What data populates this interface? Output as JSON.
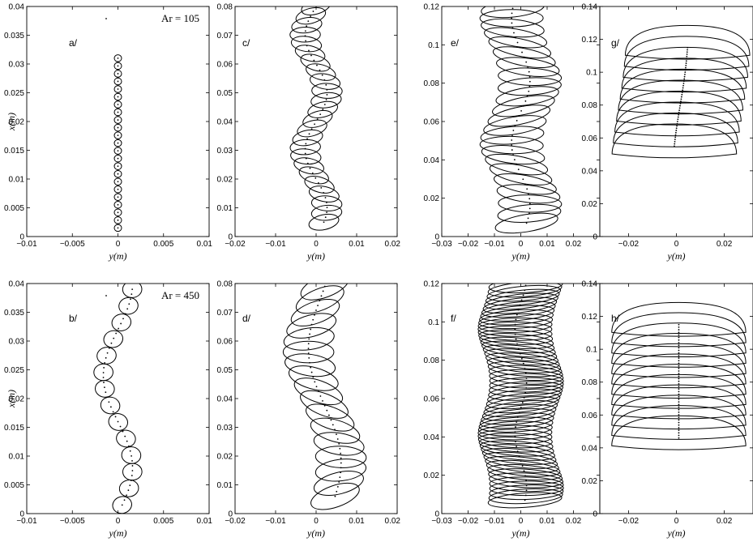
{
  "chart_data": [
    {
      "id": "a",
      "type": "scatter",
      "tag": "a/",
      "xlabel": "y(m)",
      "ylabel": "x(m)",
      "annotation": "Ar = 105",
      "xlim": [
        -0.01,
        0.01
      ],
      "ylim": [
        0,
        0.04
      ],
      "xticks": [
        "−0.01",
        "−0.005",
        "0",
        "0.005",
        "0.01"
      ],
      "yticks": [
        "0",
        "0.005",
        "0.01",
        "0.015",
        "0.02",
        "0.025",
        "0.03",
        "0.035",
        "0.04"
      ],
      "trajectory": {
        "y_start": 0.0,
        "y_end": 0.0,
        "amplitude": 0.0,
        "wavelength": 0.02,
        "x_start": 0.0015,
        "x_end": 0.031
      },
      "shapes": {
        "count": 23,
        "width": 0.0008,
        "height": 0.0012,
        "tilt_deg": 0,
        "flat_cap": false
      }
    },
    {
      "id": "c",
      "type": "scatter",
      "tag": "c/",
      "xlabel": "y(m)",
      "ylabel": "",
      "xlim": [
        -0.02,
        0.02
      ],
      "ylim": [
        0,
        0.08
      ],
      "xticks": [
        "−0.02",
        "−0.01",
        "0",
        "0.01",
        "0.02"
      ],
      "yticks": [
        "0",
        "0.01",
        "0.02",
        "0.03",
        "0.04",
        "0.05",
        "0.06",
        "0.07",
        "0.08"
      ],
      "trajectory": {
        "y_start": 0.0,
        "y_end": 0.0,
        "amplitude": 0.0027,
        "wavelength": 0.04,
        "x_start": 0.005,
        "x_end": 0.08
      },
      "shapes": {
        "count": 24,
        "width": 0.0075,
        "height": 0.0052,
        "tilt_deg": 18,
        "flat_cap": false
      }
    },
    {
      "id": "e",
      "type": "scatter",
      "tag": "e/",
      "xlabel": "y(m)",
      "ylabel": "",
      "xlim": [
        -0.03,
        0.03
      ],
      "ylim": [
        0,
        0.12
      ],
      "xticks": [
        "−0.03",
        "−0.02",
        "−0.01",
        "0",
        "0.01",
        "0.02"
      ],
      "yticks": [
        "0",
        "0.02",
        "0.04",
        "0.06",
        "0.08",
        "0.1",
        "0.12"
      ],
      "trajectory": {
        "y_start": 0.0,
        "y_end": 0.0,
        "amplitude": 0.0035,
        "wavelength": 0.065,
        "x_start": 0.007,
        "x_end": 0.119
      },
      "shapes": {
        "count": 23,
        "width": 0.024,
        "height": 0.009,
        "tilt_deg": 12,
        "flat_cap": false
      }
    },
    {
      "id": "g",
      "type": "scatter",
      "tag": "g/",
      "xlabel": "y(m)",
      "ylabel": "",
      "xlim": [
        -0.032,
        0.032
      ],
      "ylim": [
        0,
        0.14
      ],
      "xticks": [
        "−0.02",
        "0",
        "0.02"
      ],
      "yticks": [
        "0",
        "0.02",
        "0.04",
        "0.06",
        "0.08",
        "0.1",
        "0.12",
        "0.14"
      ],
      "trajectory": {
        "y_start": -0.0005,
        "y_end": 0.0045,
        "amplitude": 0.0004,
        "wavelength": 0.08,
        "x_start": 0.055,
        "x_end": 0.115
      },
      "shapes": {
        "count": 10,
        "width": 0.052,
        "height": 0.027,
        "tilt_deg": 0,
        "flat_cap": true
      }
    },
    {
      "id": "b",
      "type": "scatter",
      "tag": "b/",
      "xlabel": "y(m)",
      "ylabel": "x(m)",
      "annotation": "Ar = 450",
      "xlim": [
        -0.01,
        0.01
      ],
      "ylim": [
        0,
        0.04
      ],
      "xticks": [
        "−0.01",
        "−0.005",
        "0",
        "0.005",
        "0.01"
      ],
      "yticks": [
        "0",
        "0.005",
        "0.01",
        "0.015",
        "0.02",
        "0.025",
        "0.03",
        "0.035",
        "0.04"
      ],
      "trajectory": {
        "y_start": 0.0,
        "y_end": 0.0,
        "amplitude": 0.0016,
        "wavelength": 0.032,
        "x_start": 0.0015,
        "x_end": 0.039
      },
      "shapes": {
        "count": 14,
        "width": 0.0021,
        "height": 0.0029,
        "tilt_deg": 15,
        "flat_cap": false
      }
    },
    {
      "id": "d",
      "type": "scatter",
      "tag": "d/",
      "xlabel": "y(m)",
      "ylabel": "",
      "xlim": [
        -0.02,
        0.02
      ],
      "ylim": [
        0,
        0.08
      ],
      "xticks": [
        "−0.02",
        "−0.01",
        "0",
        "0.01",
        "0.02"
      ],
      "yticks": [
        "0",
        "0.01",
        "0.02",
        "0.03",
        "0.04",
        "0.05",
        "0.06",
        "0.07",
        "0.08"
      ],
      "trajectory": {
        "y_start": 0.003,
        "y_end": 0.001,
        "amplitude": 0.0035,
        "wavelength": 0.075,
        "x_start": 0.006,
        "x_end": 0.079
      },
      "shapes": {
        "count": 17,
        "width": 0.0125,
        "height": 0.0075,
        "tilt_deg": 22,
        "flat_cap": false
      }
    },
    {
      "id": "f",
      "type": "scatter",
      "tag": "f/",
      "xlabel": "y(m)",
      "ylabel": "",
      "xlim": [
        -0.03,
        0.03
      ],
      "ylim": [
        0,
        0.12
      ],
      "xticks": [
        "−0.03",
        "−0.02",
        "−0.01",
        "0",
        "0.01",
        "0.02"
      ],
      "yticks": [
        "0",
        "0.02",
        "0.04",
        "0.06",
        "0.08",
        "0.1",
        "0.12"
      ],
      "trajectory": {
        "y_start": 0.0,
        "y_end": 0.0,
        "amplitude": 0.0022,
        "wavelength": 0.055,
        "x_start": 0.007,
        "x_end": 0.119
      },
      "shapes": {
        "count": 55,
        "width": 0.028,
        "height": 0.0075,
        "tilt_deg": 6,
        "flat_cap": false
      }
    },
    {
      "id": "h",
      "type": "scatter",
      "tag": "h/",
      "xlabel": "y(m)",
      "ylabel": "",
      "xlim": [
        -0.032,
        0.032
      ],
      "ylim": [
        0,
        0.14
      ],
      "xticks": [
        "−0.02",
        "0",
        "0.02"
      ],
      "yticks": [
        "0",
        "0.02",
        "0.04",
        "0.06",
        "0.08",
        "0.1",
        "0.12",
        "0.14"
      ],
      "trajectory": {
        "y_start": 0.001,
        "y_end": 0.001,
        "amplitude": 0.0,
        "wavelength": 0.08,
        "x_start": 0.046,
        "x_end": 0.115
      },
      "shapes": {
        "count": 12,
        "width": 0.056,
        "height": 0.027,
        "tilt_deg": 0,
        "flat_cap": true
      }
    }
  ]
}
